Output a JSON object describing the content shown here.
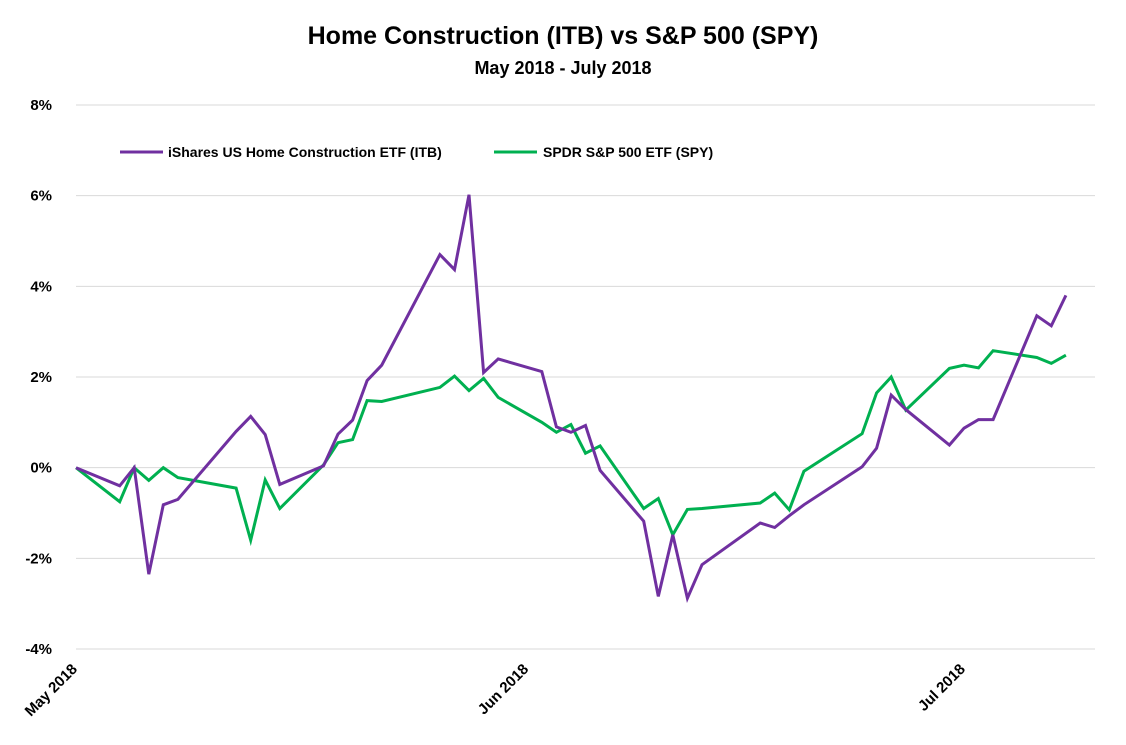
{
  "chart_data": {
    "type": "line",
    "title": "Home Construction (ITB) vs S&P 500 (SPY)",
    "subtitle": "May 2018 - July 2018",
    "xlabel": "",
    "ylabel": "",
    "ylim": [
      -4,
      8
    ],
    "yticks": [
      -4,
      -2,
      0,
      2,
      4,
      6,
      8
    ],
    "ytick_labels": [
      "-4%",
      "-2%",
      "0%",
      "2%",
      "4%",
      "6%",
      "8%"
    ],
    "xlim": [
      "2018-05-01",
      "2018-07-10"
    ],
    "xtick_dates": [
      "2018-05-01",
      "2018-06-01",
      "2018-07-01"
    ],
    "xtick_labels": [
      "May 2018",
      "Jun 2018",
      "Jul 2018"
    ],
    "grid": true,
    "legend_position": "top-left",
    "series": [
      {
        "name": "iShares US Home Construction ETF (ITB)",
        "color": "#7030A0",
        "x": [
          "2018-05-01",
          "2018-05-04",
          "2018-05-05",
          "2018-05-06",
          "2018-05-07",
          "2018-05-08",
          "2018-05-12",
          "2018-05-13",
          "2018-05-14",
          "2018-05-15",
          "2018-05-18",
          "2018-05-19",
          "2018-05-20",
          "2018-05-21",
          "2018-05-22",
          "2018-05-26",
          "2018-05-27",
          "2018-05-28",
          "2018-05-29",
          "2018-05-30",
          "2018-06-02",
          "2018-06-03",
          "2018-06-04",
          "2018-06-05",
          "2018-06-06",
          "2018-06-09",
          "2018-06-10",
          "2018-06-11",
          "2018-06-12",
          "2018-06-13",
          "2018-06-17",
          "2018-06-18",
          "2018-06-19",
          "2018-06-20",
          "2018-06-24",
          "2018-06-25",
          "2018-06-26",
          "2018-06-27",
          "2018-06-30",
          "2018-07-01",
          "2018-07-02",
          "2018-07-03",
          "2018-07-06",
          "2018-07-07",
          "2018-07-08"
        ],
        "values": [
          0.0,
          -0.4,
          0.0,
          -2.35,
          -0.82,
          -0.7,
          0.8,
          1.13,
          0.73,
          -0.37,
          0.04,
          0.74,
          1.05,
          1.92,
          2.26,
          4.7,
          4.37,
          6.02,
          2.1,
          2.4,
          2.12,
          0.9,
          0.78,
          0.93,
          -0.06,
          -1.18,
          -2.84,
          -1.48,
          -2.88,
          -2.14,
          -1.22,
          -1.32,
          -1.06,
          -0.82,
          0.02,
          0.43,
          1.6,
          1.28,
          0.5,
          0.87,
          1.06,
          1.06,
          3.35,
          3.13,
          3.8
        ]
      },
      {
        "name": "SPDR S&P 500 ETF (SPY)",
        "color": "#00B050",
        "x": [
          "2018-05-01",
          "2018-05-04",
          "2018-05-05",
          "2018-05-06",
          "2018-05-07",
          "2018-05-08",
          "2018-05-12",
          "2018-05-13",
          "2018-05-14",
          "2018-05-15",
          "2018-05-18",
          "2018-05-19",
          "2018-05-20",
          "2018-05-21",
          "2018-05-22",
          "2018-05-26",
          "2018-05-27",
          "2018-05-28",
          "2018-05-29",
          "2018-05-30",
          "2018-06-02",
          "2018-06-03",
          "2018-06-04",
          "2018-06-05",
          "2018-06-06",
          "2018-06-09",
          "2018-06-10",
          "2018-06-11",
          "2018-06-12",
          "2018-06-13",
          "2018-06-17",
          "2018-06-18",
          "2018-06-19",
          "2018-06-20",
          "2018-06-24",
          "2018-06-25",
          "2018-06-26",
          "2018-06-27",
          "2018-06-30",
          "2018-07-01",
          "2018-07-02",
          "2018-07-03",
          "2018-07-06",
          "2018-07-07",
          "2018-07-08"
        ],
        "values": [
          0.0,
          -0.75,
          0.0,
          -0.28,
          0.0,
          -0.22,
          -0.45,
          -1.6,
          -0.27,
          -0.9,
          0.06,
          0.55,
          0.62,
          1.48,
          1.46,
          1.77,
          2.02,
          1.7,
          1.97,
          1.55,
          1.0,
          0.78,
          0.95,
          0.32,
          0.48,
          -0.9,
          -0.68,
          -1.48,
          -0.92,
          -0.9,
          -0.78,
          -0.56,
          -0.93,
          -0.08,
          0.75,
          1.65,
          2.0,
          1.27,
          2.19,
          2.26,
          2.2,
          2.58,
          2.43,
          2.3,
          2.48
        ]
      }
    ]
  }
}
